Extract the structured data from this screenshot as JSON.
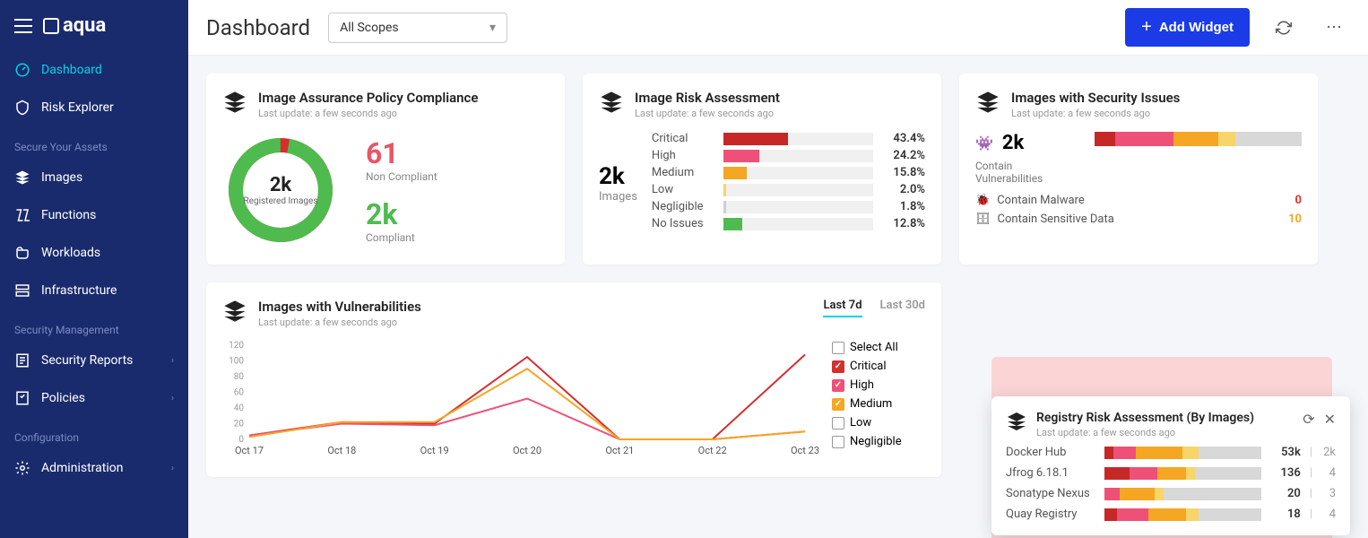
{
  "brand": "aqua",
  "sidebar": {
    "items": [
      {
        "label": "Dashboard",
        "icon": "gauge-icon",
        "active": true
      },
      {
        "label": "Risk Explorer",
        "icon": "shield-icon"
      }
    ],
    "section1": "Secure Your Assets",
    "assets": [
      {
        "label": "Images",
        "icon": "stack-icon"
      },
      {
        "label": "Functions",
        "icon": "functions-icon"
      },
      {
        "label": "Workloads",
        "icon": "workloads-icon"
      },
      {
        "label": "Infrastructure",
        "icon": "infrastructure-icon"
      }
    ],
    "section2": "Security Management",
    "mgmt": [
      {
        "label": "Security Reports",
        "icon": "report-icon",
        "chev": true
      },
      {
        "label": "Policies",
        "icon": "policies-icon",
        "chev": true
      }
    ],
    "section3": "Configuration",
    "config": [
      {
        "label": "Administration",
        "icon": "gear-icon",
        "chev": true
      }
    ]
  },
  "topbar": {
    "title": "Dashboard",
    "scope": "All Scopes",
    "addWidget": "Add Widget"
  },
  "compliance": {
    "title": "Image Assurance Policy Compliance",
    "sub": "Last update: a few seconds ago",
    "donut": {
      "value": "2k",
      "label": "Registered Images",
      "compliant_pct": 97,
      "compliant_color": "#4fbb4f",
      "noncompliant_color": "#d32f2f"
    },
    "nonCompliant": {
      "value": "61",
      "label": "Non Compliant",
      "color": "#e85667"
    },
    "compliant": {
      "value": "2k",
      "label": "Compliant",
      "color": "#4fbb4f"
    }
  },
  "risk": {
    "title": "Image Risk Assessment",
    "sub": "Last update: a few seconds ago",
    "total": "2k",
    "totalLabel": "Images",
    "rows": [
      {
        "name": "Critical",
        "pct": 43.4,
        "color": "#c62828"
      },
      {
        "name": "High",
        "pct": 24.2,
        "color": "#ef5078"
      },
      {
        "name": "Medium",
        "pct": 15.8,
        "color": "#f5a623"
      },
      {
        "name": "Low",
        "pct": 2.0,
        "color": "#f8d568"
      },
      {
        "name": "Negligible",
        "pct": 1.8,
        "color": "#cfcfcf"
      },
      {
        "name": "No Issues",
        "pct": 12.8,
        "color": "#4fbb4f"
      }
    ]
  },
  "security": {
    "title": "Images with Security Issues",
    "sub": "Last update: a few seconds ago",
    "count": "2k",
    "countLabel": "Contain Vulnerabilities",
    "bar": [
      {
        "color": "#c62828",
        "w": 10
      },
      {
        "color": "#ef5078",
        "w": 28
      },
      {
        "color": "#f5a623",
        "w": 22
      },
      {
        "color": "#f8d568",
        "w": 8
      },
      {
        "color": "#d8d8d8",
        "w": 32
      }
    ],
    "malware": {
      "label": "Contain Malware",
      "value": "0",
      "color": "#e6322b"
    },
    "sensitive": {
      "label": "Contain Sensitive Data",
      "value": "10",
      "color": "#f5a623"
    }
  },
  "vuln": {
    "title": "Images with Vulnerabilities",
    "sub": "Last update: a few seconds ago",
    "tabs": [
      "Last 7d",
      "Last 30d"
    ],
    "activeTab": 0,
    "yticks": [
      120,
      100,
      80,
      60,
      40,
      20,
      0
    ],
    "xlabels": [
      "Oct 17",
      "Oct 18",
      "Oct 19",
      "Oct 20",
      "Oct 21",
      "Oct 22",
      "Oct 23"
    ],
    "series": [
      {
        "name": "Critical",
        "color": "#d32f2f",
        "checked": true,
        "points": [
          5,
          22,
          20,
          105,
          0,
          0,
          108
        ]
      },
      {
        "name": "High",
        "color": "#ef5078",
        "checked": true,
        "points": [
          5,
          20,
          18,
          52,
          0,
          0,
          10
        ]
      },
      {
        "name": "Medium",
        "color": "#f5a623",
        "checked": true,
        "points": [
          3,
          22,
          22,
          90,
          0,
          0,
          10
        ]
      },
      {
        "name": "Low",
        "color": "#999999",
        "checked": false,
        "points": []
      },
      {
        "name": "Negligible",
        "color": "#999999",
        "checked": false,
        "points": []
      }
    ],
    "legend_selectAll": "Select All"
  },
  "registry": {
    "title": "Registry Risk Assessment (By Images)",
    "sub": "Last update: a few seconds ago",
    "rows": [
      {
        "name": "Docker Hub",
        "count": "53k",
        "sub": "2k",
        "segs": [
          {
            "c": "#c62828",
            "w": 6
          },
          {
            "c": "#ef5078",
            "w": 14
          },
          {
            "c": "#f5a623",
            "w": 30
          },
          {
            "c": "#f8d568",
            "w": 10
          },
          {
            "c": "#d8d8d8",
            "w": 40
          }
        ]
      },
      {
        "name": "Jfrog 6.18.1",
        "count": "136",
        "sub": "4",
        "segs": [
          {
            "c": "#c62828",
            "w": 16
          },
          {
            "c": "#ef5078",
            "w": 18
          },
          {
            "c": "#f5a623",
            "w": 18
          },
          {
            "c": "#f8d568",
            "w": 6
          },
          {
            "c": "#d8d8d8",
            "w": 42
          }
        ]
      },
      {
        "name": "Sonatype Nexus",
        "count": "20",
        "sub": "3",
        "segs": [
          {
            "c": "#ef5078",
            "w": 10
          },
          {
            "c": "#f5a623",
            "w": 22
          },
          {
            "c": "#f8d568",
            "w": 6
          },
          {
            "c": "#d8d8d8",
            "w": 62
          }
        ]
      },
      {
        "name": "Quay Registry",
        "count": "18",
        "sub": "4",
        "segs": [
          {
            "c": "#c62828",
            "w": 8
          },
          {
            "c": "#ef5078",
            "w": 20
          },
          {
            "c": "#f5a623",
            "w": 24
          },
          {
            "c": "#f8d568",
            "w": 8
          },
          {
            "c": "#d8d8d8",
            "w": 40
          }
        ]
      }
    ]
  }
}
